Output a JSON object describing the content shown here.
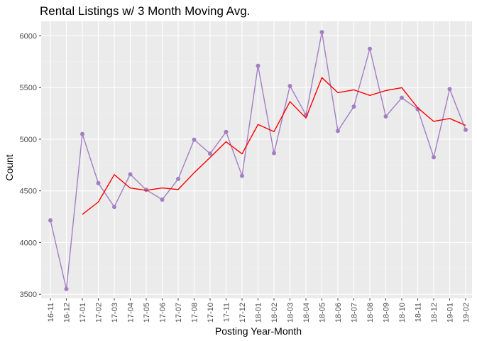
{
  "chart_data": {
    "type": "line",
    "title": "Rental Listings w/ 3 Month Moving Avg.",
    "xlabel": "Posting Year-Month",
    "ylabel": "Count",
    "ylim": [
      3460,
      6140
    ],
    "yticks": [
      3500,
      4000,
      4500,
      5000,
      5500,
      6000
    ],
    "grid": true,
    "legend": "none",
    "categories": [
      "16-11",
      "16-12",
      "17-01",
      "17-02",
      "17-03",
      "17-04",
      "17-05",
      "17-06",
      "17-07",
      "17-08",
      "17-10",
      "17-11",
      "17-12",
      "18-01",
      "18-02",
      "18-03",
      "18-04",
      "18-05",
      "18-06",
      "18-07",
      "18-08",
      "18-09",
      "18-10",
      "18-11",
      "18-12",
      "19-01",
      "19-02"
    ],
    "series": [
      {
        "kind": "monthly",
        "color": "#a17fc3",
        "markers": true,
        "values": [
          4215,
          3550,
          5050,
          4575,
          4345,
          4660,
          4510,
          4415,
          4615,
          4995,
          4860,
          5070,
          4645,
          5710,
          4865,
          5515,
          5235,
          6035,
          5080,
          5315,
          5875,
          5220,
          5400,
          5290,
          4825,
          5485,
          5090
        ]
      },
      {
        "kind": "moving-average",
        "color": "#ff0000",
        "markers": false,
        "values": [
          null,
          null,
          4272,
          4392,
          4657,
          4527,
          4505,
          4528,
          4513,
          4675,
          4823,
          4975,
          4858,
          5142,
          5073,
          5363,
          5205,
          5595,
          5450,
          5477,
          5423,
          5470,
          5498,
          5303,
          5172,
          5200,
          5133
        ]
      }
    ]
  }
}
